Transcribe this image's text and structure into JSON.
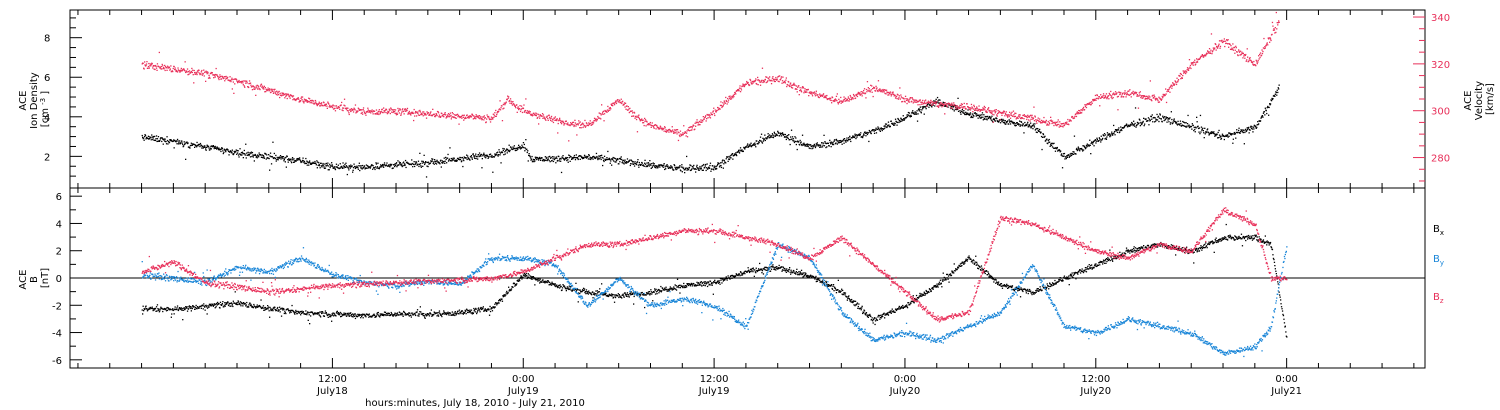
{
  "chart_data": [
    {
      "type": "scatter",
      "panel": "top",
      "ylabel_lines": [
        "ACE",
        "Ion Density",
        "[cm",
        "-3",
        "]"
      ],
      "ylim": [
        0.4,
        9.4
      ],
      "yticks": [
        2,
        4,
        6,
        8
      ],
      "yticklabels": [
        "2",
        "4",
        "6",
        "8"
      ],
      "y2label_lines": [
        "ACE",
        "Velocity",
        "[km/s]"
      ],
      "y2lim": [
        267,
        343
      ],
      "y2ticks": [
        280,
        300,
        320,
        340
      ],
      "y2ticklabels": [
        "280",
        "300",
        "320",
        "340"
      ],
      "y2_color": "#e8305a",
      "series": [
        {
          "axis": "left",
          "color": "#000000",
          "x": [
            0,
            2,
            4,
            6,
            8,
            10,
            12,
            14,
            16,
            18,
            20,
            22,
            24,
            24.5,
            26,
            28,
            30,
            32,
            34,
            36,
            38,
            40,
            42,
            44,
            46,
            48,
            50,
            52,
            54,
            56,
            58,
            60,
            62,
            64,
            66,
            68,
            70,
            71.5
          ],
          "y": [
            3.0,
            2.8,
            2.5,
            2.2,
            2.0,
            1.8,
            1.5,
            1.5,
            1.6,
            1.7,
            1.9,
            2.1,
            2.6,
            1.9,
            1.9,
            2.0,
            1.8,
            1.6,
            1.4,
            1.5,
            2.5,
            3.2,
            2.5,
            2.8,
            3.3,
            4.0,
            4.8,
            4.2,
            3.8,
            3.6,
            2.0,
            2.8,
            3.6,
            4.0,
            3.5,
            3.0,
            3.5,
            5.5
          ]
        },
        {
          "axis": "right",
          "color": "#e8305a",
          "x": [
            0,
            2,
            4,
            6,
            8,
            10,
            12,
            14,
            16,
            18,
            20,
            22,
            23,
            24,
            26,
            28,
            30,
            31,
            32,
            34,
            36,
            38,
            40,
            42,
            44,
            46,
            48,
            50,
            52,
            54,
            56,
            58,
            60,
            62,
            64,
            66,
            68,
            70,
            71.5
          ],
          "y": [
            320,
            318,
            316,
            313,
            309,
            305,
            302,
            300,
            300,
            299,
            298,
            297,
            305,
            300,
            296,
            294,
            305,
            298,
            294,
            290,
            300,
            312,
            314,
            308,
            304,
            310,
            305,
            303,
            302,
            299,
            297,
            294,
            306,
            308,
            305,
            320,
            330,
            320,
            338
          ]
        }
      ]
    },
    {
      "type": "scatter",
      "panel": "bottom",
      "ylabel_lines": [
        "ACE",
        "B",
        "[nT]"
      ],
      "ylim": [
        -6.6,
        6.6
      ],
      "yticks": [
        -6,
        -4,
        -2,
        0,
        2,
        4,
        6
      ],
      "yticklabels": [
        "-6",
        "-4",
        "-2",
        "0",
        "2",
        "4",
        "6"
      ],
      "zero_line": true,
      "series": [
        {
          "name": "Bx",
          "color": "#000000",
          "x": [
            0,
            2,
            4,
            6,
            8,
            10,
            12,
            14,
            16,
            18,
            20,
            22,
            24,
            26,
            28,
            30,
            32,
            34,
            36,
            38,
            40,
            42,
            44,
            46,
            48,
            50,
            52,
            54,
            56,
            58,
            60,
            62,
            64,
            66,
            68,
            70,
            71,
            72
          ],
          "y": [
            -2.2,
            -2.3,
            -2.0,
            -1.8,
            -2.2,
            -2.5,
            -2.6,
            -2.7,
            -2.6,
            -2.6,
            -2.5,
            -2.2,
            0.3,
            -0.5,
            -1.0,
            -1.3,
            -1.0,
            -0.5,
            -0.3,
            0.5,
            0.8,
            0.2,
            -1.0,
            -3.0,
            -2.0,
            -0.5,
            1.5,
            -0.5,
            -1.0,
            0.0,
            1.0,
            2.0,
            2.5,
            2.0,
            3.0,
            3.0,
            2.5,
            -4.5
          ]
        },
        {
          "name": "By",
          "color": "#1a86d8",
          "x": [
            0,
            2,
            4,
            6,
            8,
            10,
            12,
            14,
            16,
            18,
            20,
            22,
            24,
            26,
            28,
            30,
            32,
            34,
            36,
            38,
            40,
            42,
            44,
            46,
            48,
            50,
            52,
            54,
            56,
            58,
            60,
            62,
            64,
            66,
            68,
            70,
            71,
            72
          ],
          "y": [
            0.3,
            0.0,
            -0.3,
            0.8,
            0.5,
            1.5,
            0.3,
            -0.3,
            -0.5,
            -0.2,
            -0.4,
            1.5,
            1.5,
            1.0,
            -2.0,
            0.0,
            -2.0,
            -1.5,
            -2.0,
            -3.5,
            2.5,
            1.5,
            -2.5,
            -4.5,
            -4.0,
            -4.5,
            -3.5,
            -2.5,
            1.0,
            -3.5,
            -4.0,
            -3.0,
            -3.5,
            -4.0,
            -5.5,
            -5.0,
            -3.5,
            2.5
          ]
        },
        {
          "name": "Bz",
          "color": "#e8305a",
          "x": [
            0,
            2,
            4,
            6,
            8,
            10,
            12,
            14,
            16,
            18,
            20,
            22,
            24,
            26,
            28,
            30,
            32,
            34,
            36,
            38,
            40,
            42,
            44,
            46,
            48,
            50,
            52,
            54,
            56,
            58,
            60,
            62,
            64,
            66,
            68,
            70,
            71,
            72
          ],
          "y": [
            0.5,
            1.2,
            -0.3,
            -0.6,
            -1.0,
            -0.8,
            -0.5,
            -0.4,
            -0.3,
            -0.2,
            -0.1,
            0.0,
            0.5,
            1.5,
            2.5,
            2.5,
            3.0,
            3.5,
            3.5,
            3.0,
            2.5,
            1.5,
            3.0,
            1.0,
            -1.0,
            -3.0,
            -2.5,
            4.5,
            4.0,
            3.0,
            2.0,
            1.5,
            2.5,
            2.0,
            5.0,
            4.0,
            0.0,
            0.0
          ]
        }
      ],
      "legend_placement": "right",
      "legend": [
        {
          "main": "B",
          "sub": "x",
          "color": "#000000"
        },
        {
          "main": "B",
          "sub": "y",
          "color": "#1a86d8"
        },
        {
          "main": "B",
          "sub": "z",
          "color": "#e8305a"
        }
      ]
    }
  ],
  "xaxis": {
    "units": "hours from 2010-07-18 00:00",
    "xlim": [
      -4.5,
      80.7
    ],
    "major_ticks": [
      12,
      24,
      36,
      48,
      60,
      72
    ],
    "minor_tick_step": 2,
    "major_labels": [
      {
        "x": 12,
        "time": "12:00",
        "date": "July18"
      },
      {
        "x": 24,
        "time": "0:00",
        "date": "July19"
      },
      {
        "x": 36,
        "time": "12:00",
        "date": "July19"
      },
      {
        "x": 48,
        "time": "0:00",
        "date": "July20"
      },
      {
        "x": 60,
        "time": "12:00",
        "date": "July20"
      },
      {
        "x": 72,
        "time": "0:00",
        "date": "July21"
      }
    ],
    "title": "hours:minutes, July 18, 2010 - July 21, 2010"
  }
}
